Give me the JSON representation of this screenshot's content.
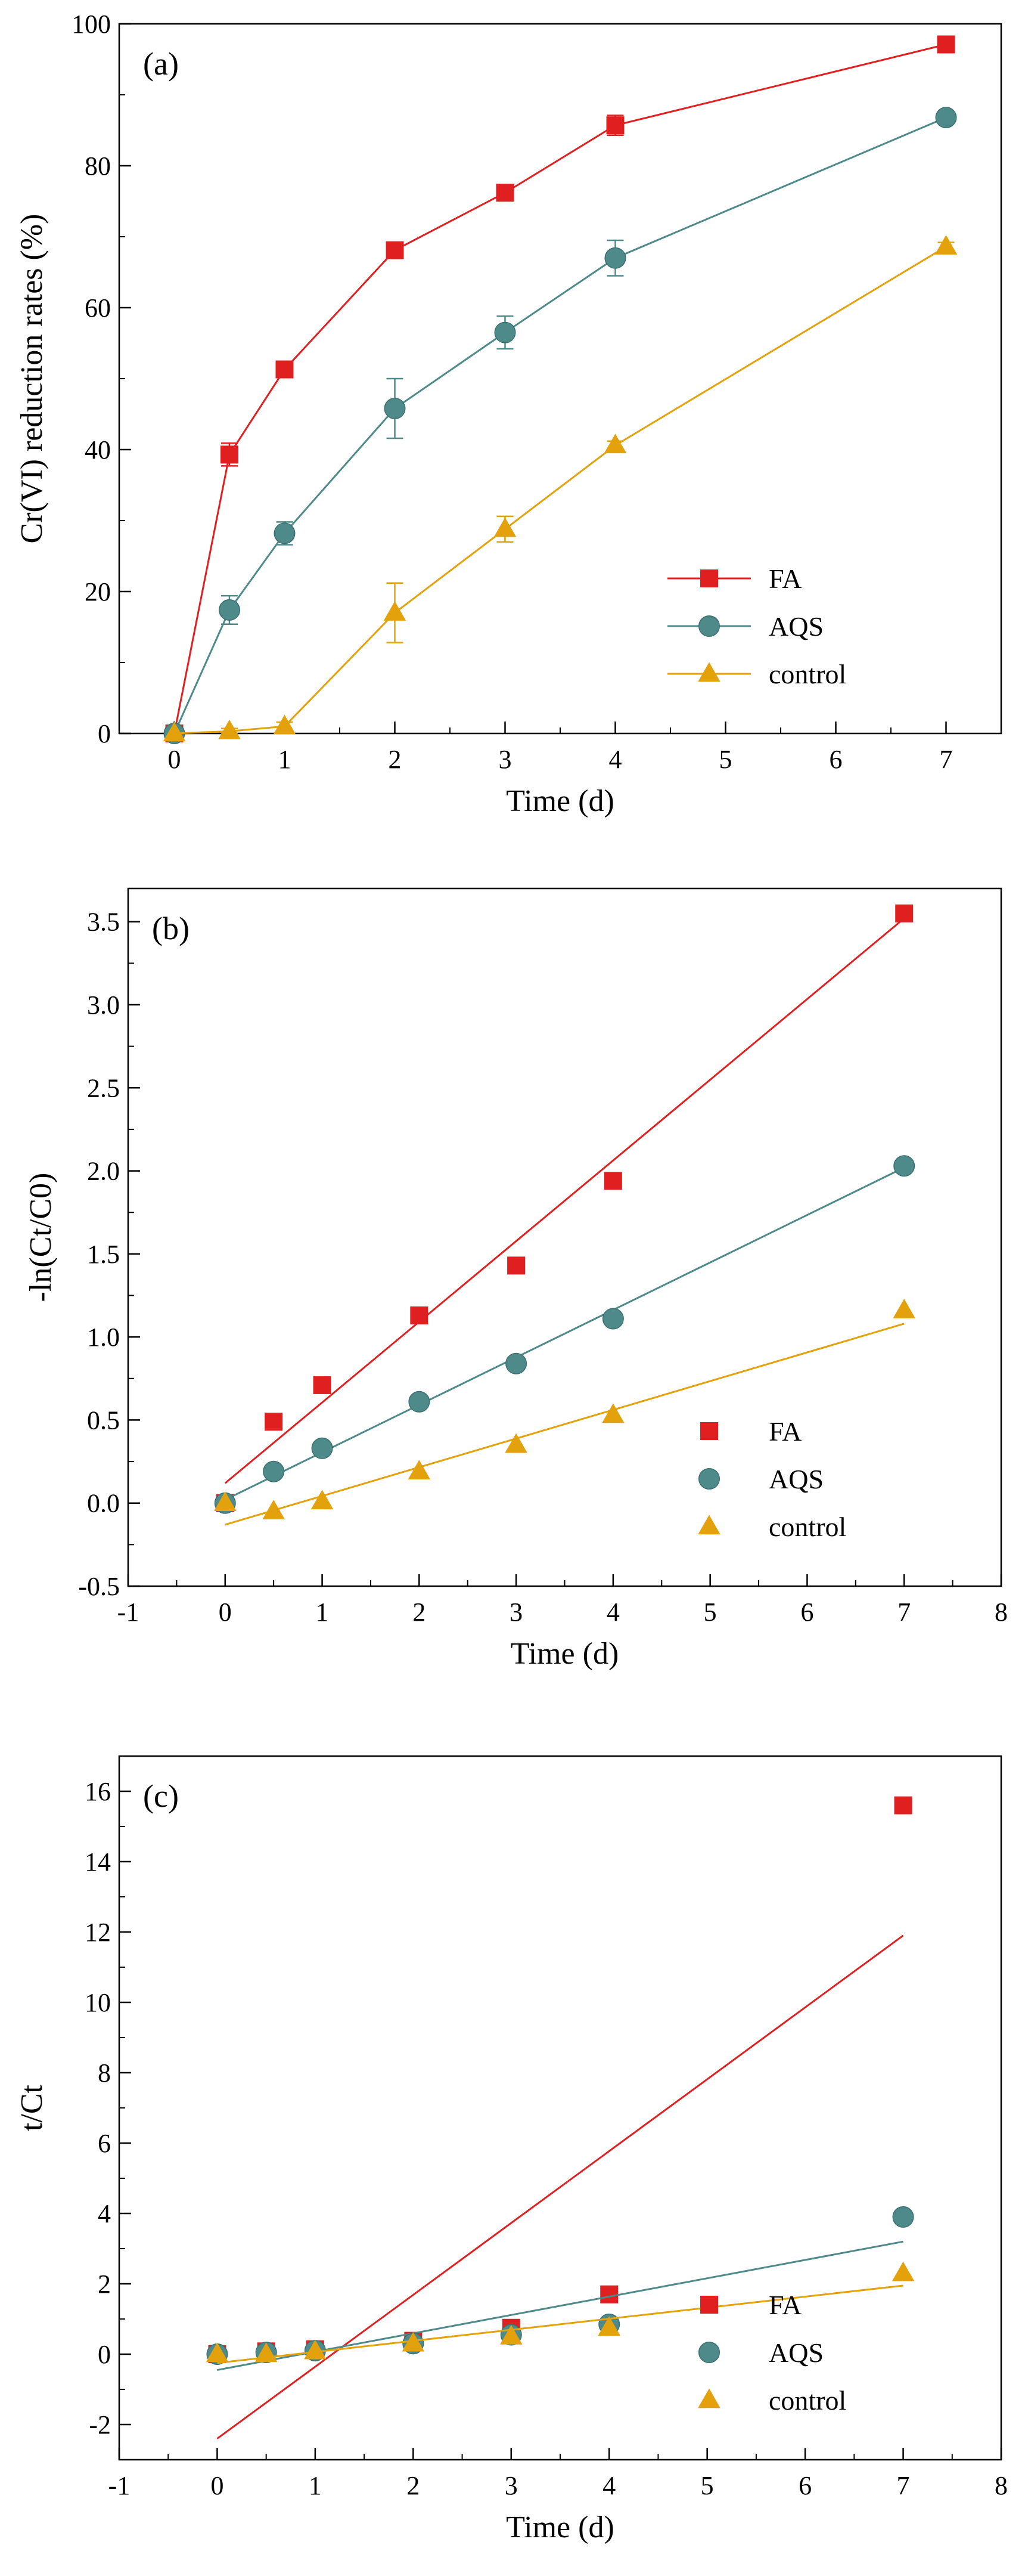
{
  "colors": {
    "FA": "#e02020",
    "AQS": "#4f8a8b",
    "control": "#e3a20c"
  },
  "chart_data": [
    {
      "type": "line",
      "panel_label": "(a)",
      "xlabel": "Time (d)",
      "ylabel": "Cr(VI) reduction rates (%)",
      "xlim": [
        -0.5,
        7.5
      ],
      "ylim": [
        0,
        100
      ],
      "xticks": [
        0,
        1,
        2,
        3,
        4,
        5,
        6,
        7
      ],
      "yticks": [
        0,
        20,
        40,
        60,
        80,
        100
      ],
      "x_minor_step": 0.5,
      "y_minor_step": 10,
      "legend_position": "bottom-right",
      "series": [
        {
          "name": "FA",
          "marker": "square",
          "connect": "points",
          "x": [
            0,
            0.5,
            1,
            2,
            3,
            4,
            7
          ],
          "y": [
            0,
            39.3,
            51.3,
            68.1,
            76.2,
            85.7,
            97.1
          ],
          "err": [
            0,
            1.6,
            0.8,
            0.7,
            0.8,
            1.4,
            0.6
          ]
        },
        {
          "name": "AQS",
          "marker": "circle",
          "connect": "points",
          "x": [
            0,
            0.5,
            1,
            2,
            3,
            4,
            7
          ],
          "y": [
            0,
            17.4,
            28.2,
            45.8,
            56.5,
            67.0,
            86.8
          ],
          "err": [
            0,
            2.0,
            1.6,
            4.2,
            2.3,
            2.5,
            0.8
          ]
        },
        {
          "name": "control",
          "marker": "triangle",
          "connect": "points",
          "x": [
            0,
            0.5,
            1,
            2,
            3,
            4,
            7
          ],
          "y": [
            0,
            0.3,
            1.0,
            17.0,
            28.8,
            40.6,
            68.6
          ],
          "err": [
            0,
            0.4,
            0.6,
            4.2,
            1.8,
            0.6,
            0.6
          ]
        }
      ]
    },
    {
      "type": "scatter",
      "panel_label": "(b)",
      "xlabel": "Time (d)",
      "ylabel": "-ln(Ct/C0)",
      "xlim": [
        -1,
        8
      ],
      "ylim": [
        -0.5,
        3.7
      ],
      "xticks": [
        -1,
        0,
        1,
        2,
        3,
        4,
        5,
        6,
        7,
        8
      ],
      "yticks": [
        -0.5,
        0.0,
        0.5,
        1.0,
        1.5,
        2.0,
        2.5,
        3.0,
        3.5
      ],
      "ytick_labels": [
        "-0.5",
        "0.0",
        "0.5",
        "1.0",
        "1.5",
        "2.0",
        "2.5",
        "3.0",
        "3.5"
      ],
      "x_minor_step": 0.5,
      "y_minor_step": 0.25,
      "legend_position": "bottom-right",
      "series": [
        {
          "name": "FA",
          "marker": "square",
          "x": [
            0,
            0.5,
            1,
            2,
            3,
            4,
            7
          ],
          "y": [
            0.0,
            0.49,
            0.71,
            1.13,
            1.43,
            1.94,
            3.55
          ],
          "fit": [
            [
              0,
              0.12
            ],
            [
              7,
              3.52
            ]
          ]
        },
        {
          "name": "AQS",
          "marker": "circle",
          "x": [
            0,
            0.5,
            1,
            2,
            3,
            4,
            7
          ],
          "y": [
            0.0,
            0.19,
            0.33,
            0.61,
            0.84,
            1.11,
            2.03
          ],
          "fit": [
            [
              0,
              0.02
            ],
            [
              7,
              2.02
            ]
          ]
        },
        {
          "name": "control",
          "marker": "triangle",
          "x": [
            0,
            0.5,
            1,
            2,
            3,
            4,
            7
          ],
          "y": [
            0.0,
            -0.05,
            0.01,
            0.19,
            0.35,
            0.53,
            1.16
          ],
          "fit": [
            [
              0,
              -0.13
            ],
            [
              7,
              1.08
            ]
          ]
        }
      ]
    },
    {
      "type": "scatter",
      "panel_label": "(c)",
      "xlabel": "Time (d)",
      "ylabel": "t/Ct",
      "xlim": [
        -1,
        8
      ],
      "ylim": [
        -3,
        17
      ],
      "xticks": [
        -1,
        0,
        1,
        2,
        3,
        4,
        5,
        6,
        7,
        8
      ],
      "yticks": [
        -2,
        0,
        2,
        4,
        6,
        8,
        10,
        12,
        14,
        16
      ],
      "x_minor_step": 0.5,
      "y_minor_step": 1,
      "legend_position": "bottom-right",
      "series": [
        {
          "name": "FA",
          "marker": "square",
          "x": [
            0,
            0.5,
            1,
            2,
            3,
            4,
            7
          ],
          "y": [
            0.0,
            0.08,
            0.14,
            0.38,
            0.75,
            1.7,
            15.6
          ],
          "fit": [
            [
              0,
              -2.4
            ],
            [
              7,
              11.9
            ]
          ]
        },
        {
          "name": "AQS",
          "marker": "circle",
          "x": [
            0,
            0.5,
            1,
            2,
            3,
            4,
            7
          ],
          "y": [
            0.0,
            0.05,
            0.1,
            0.3,
            0.55,
            0.85,
            3.9
          ],
          "fit": [
            [
              0,
              -0.45
            ],
            [
              7,
              3.2
            ]
          ]
        },
        {
          "name": "control",
          "marker": "triangle",
          "x": [
            0,
            0.5,
            1,
            2,
            3,
            4,
            7
          ],
          "y": [
            0.0,
            0.0,
            0.08,
            0.3,
            0.5,
            0.75,
            2.3
          ],
          "fit": [
            [
              0,
              -0.25
            ],
            [
              7,
              1.95
            ]
          ]
        }
      ]
    }
  ]
}
